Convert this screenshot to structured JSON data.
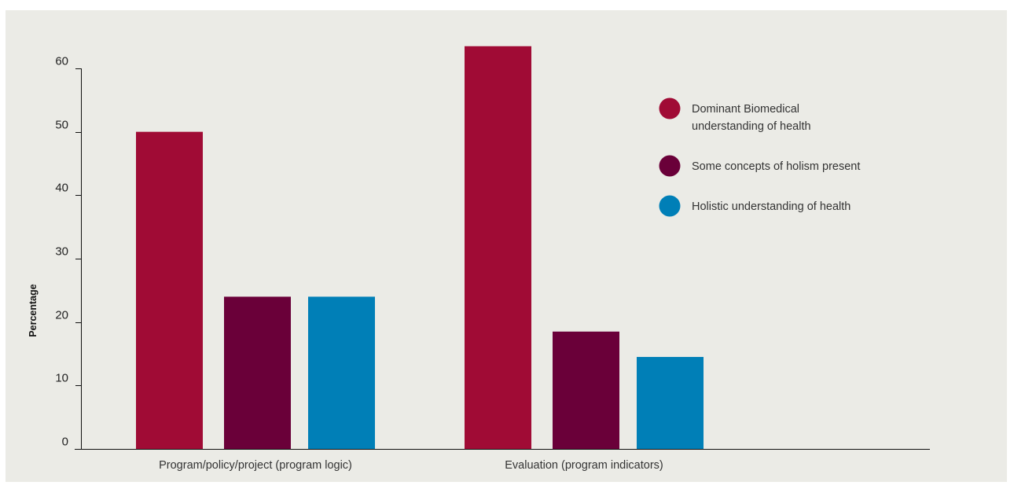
{
  "chart_data": {
    "type": "bar",
    "title": "",
    "xlabel": "",
    "ylabel": "Percentage",
    "ylim": [
      0,
      60
    ],
    "yticks": [
      0,
      10,
      20,
      30,
      40,
      50,
      60
    ],
    "grid": false,
    "legend_position": "top-right",
    "categories": [
      "Program/policy/project (program logic)",
      "Evaluation (program indicators)"
    ],
    "series": [
      {
        "name": "Dominant Biomedical understanding of health",
        "legend_lines": [
          "Dominant Biomedical",
          "understanding of health"
        ],
        "color": "#a00b35",
        "values": [
          50,
          63.5
        ]
      },
      {
        "name": "Some concepts of holism present",
        "legend_lines": [
          "Some concepts of holism present"
        ],
        "color": "#6a0039",
        "values": [
          24,
          18.5
        ]
      },
      {
        "name": "Holistic understanding of health",
        "legend_lines": [
          "Holistic understanding of health"
        ],
        "color": "#007fb7",
        "values": [
          24,
          14.5
        ]
      }
    ]
  }
}
